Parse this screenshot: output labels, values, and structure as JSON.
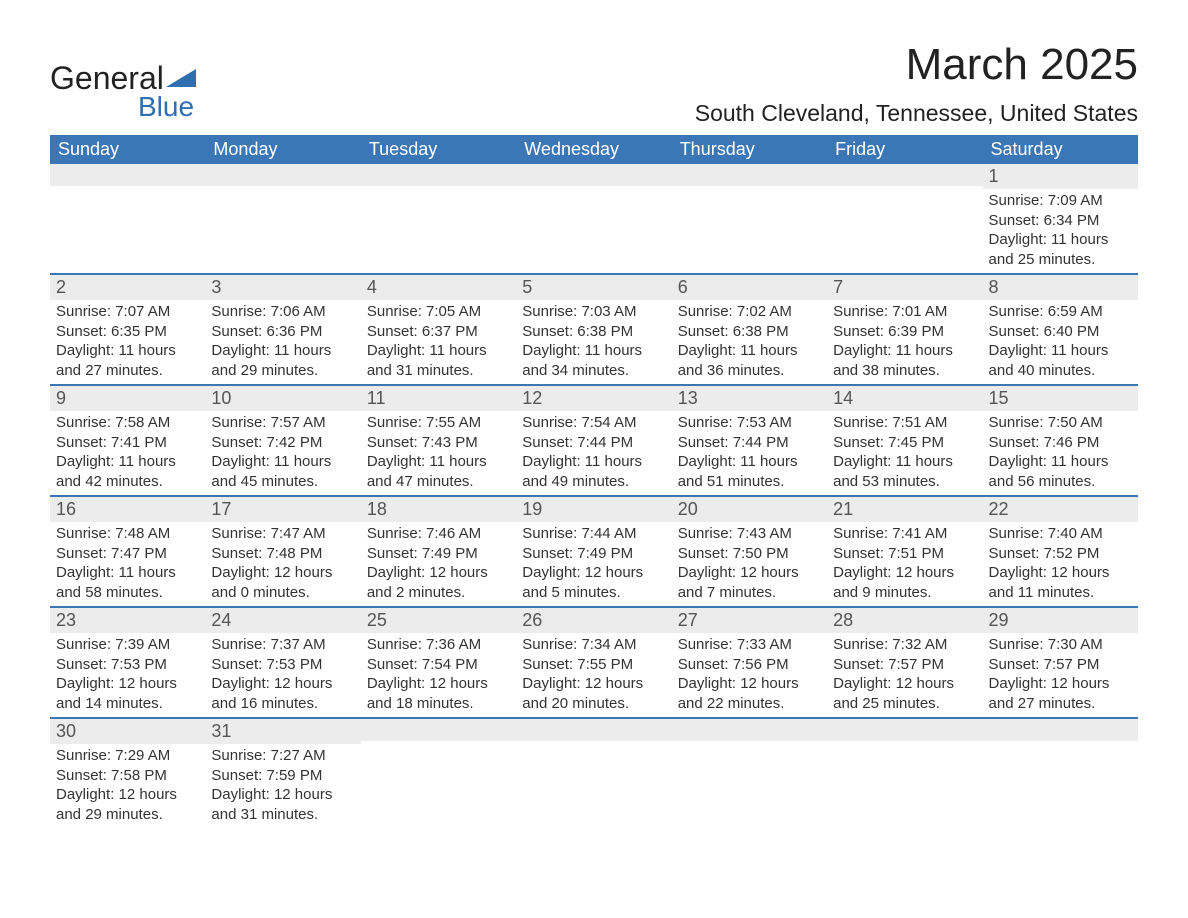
{
  "brand": {
    "name_top": "General",
    "name_bottom": "Blue",
    "shape_color": "#2f6fb0"
  },
  "title": "March 2025",
  "location": "South Cleveland, Tennessee, United States",
  "colors": {
    "header_bg": "#3b77b6",
    "header_text": "#ffffff",
    "daynum_bg": "#ececec",
    "border": "#3b77b6",
    "text": "#333333"
  },
  "weekdays": [
    "Sunday",
    "Monday",
    "Tuesday",
    "Wednesday",
    "Thursday",
    "Friday",
    "Saturday"
  ],
  "weeks": [
    [
      null,
      null,
      null,
      null,
      null,
      null,
      {
        "n": "1",
        "sunrise": "7:09 AM",
        "sunset": "6:34 PM",
        "dl1": "11 hours",
        "dl2": "and 25 minutes."
      }
    ],
    [
      {
        "n": "2",
        "sunrise": "7:07 AM",
        "sunset": "6:35 PM",
        "dl1": "11 hours",
        "dl2": "and 27 minutes."
      },
      {
        "n": "3",
        "sunrise": "7:06 AM",
        "sunset": "6:36 PM",
        "dl1": "11 hours",
        "dl2": "and 29 minutes."
      },
      {
        "n": "4",
        "sunrise": "7:05 AM",
        "sunset": "6:37 PM",
        "dl1": "11 hours",
        "dl2": "and 31 minutes."
      },
      {
        "n": "5",
        "sunrise": "7:03 AM",
        "sunset": "6:38 PM",
        "dl1": "11 hours",
        "dl2": "and 34 minutes."
      },
      {
        "n": "6",
        "sunrise": "7:02 AM",
        "sunset": "6:38 PM",
        "dl1": "11 hours",
        "dl2": "and 36 minutes."
      },
      {
        "n": "7",
        "sunrise": "7:01 AM",
        "sunset": "6:39 PM",
        "dl1": "11 hours",
        "dl2": "and 38 minutes."
      },
      {
        "n": "8",
        "sunrise": "6:59 AM",
        "sunset": "6:40 PM",
        "dl1": "11 hours",
        "dl2": "and 40 minutes."
      }
    ],
    [
      {
        "n": "9",
        "sunrise": "7:58 AM",
        "sunset": "7:41 PM",
        "dl1": "11 hours",
        "dl2": "and 42 minutes."
      },
      {
        "n": "10",
        "sunrise": "7:57 AM",
        "sunset": "7:42 PM",
        "dl1": "11 hours",
        "dl2": "and 45 minutes."
      },
      {
        "n": "11",
        "sunrise": "7:55 AM",
        "sunset": "7:43 PM",
        "dl1": "11 hours",
        "dl2": "and 47 minutes."
      },
      {
        "n": "12",
        "sunrise": "7:54 AM",
        "sunset": "7:44 PM",
        "dl1": "11 hours",
        "dl2": "and 49 minutes."
      },
      {
        "n": "13",
        "sunrise": "7:53 AM",
        "sunset": "7:44 PM",
        "dl1": "11 hours",
        "dl2": "and 51 minutes."
      },
      {
        "n": "14",
        "sunrise": "7:51 AM",
        "sunset": "7:45 PM",
        "dl1": "11 hours",
        "dl2": "and 53 minutes."
      },
      {
        "n": "15",
        "sunrise": "7:50 AM",
        "sunset": "7:46 PM",
        "dl1": "11 hours",
        "dl2": "and 56 minutes."
      }
    ],
    [
      {
        "n": "16",
        "sunrise": "7:48 AM",
        "sunset": "7:47 PM",
        "dl1": "11 hours",
        "dl2": "and 58 minutes."
      },
      {
        "n": "17",
        "sunrise": "7:47 AM",
        "sunset": "7:48 PM",
        "dl1": "12 hours",
        "dl2": "and 0 minutes."
      },
      {
        "n": "18",
        "sunrise": "7:46 AM",
        "sunset": "7:49 PM",
        "dl1": "12 hours",
        "dl2": "and 2 minutes."
      },
      {
        "n": "19",
        "sunrise": "7:44 AM",
        "sunset": "7:49 PM",
        "dl1": "12 hours",
        "dl2": "and 5 minutes."
      },
      {
        "n": "20",
        "sunrise": "7:43 AM",
        "sunset": "7:50 PM",
        "dl1": "12 hours",
        "dl2": "and 7 minutes."
      },
      {
        "n": "21",
        "sunrise": "7:41 AM",
        "sunset": "7:51 PM",
        "dl1": "12 hours",
        "dl2": "and 9 minutes."
      },
      {
        "n": "22",
        "sunrise": "7:40 AM",
        "sunset": "7:52 PM",
        "dl1": "12 hours",
        "dl2": "and 11 minutes."
      }
    ],
    [
      {
        "n": "23",
        "sunrise": "7:39 AM",
        "sunset": "7:53 PM",
        "dl1": "12 hours",
        "dl2": "and 14 minutes."
      },
      {
        "n": "24",
        "sunrise": "7:37 AM",
        "sunset": "7:53 PM",
        "dl1": "12 hours",
        "dl2": "and 16 minutes."
      },
      {
        "n": "25",
        "sunrise": "7:36 AM",
        "sunset": "7:54 PM",
        "dl1": "12 hours",
        "dl2": "and 18 minutes."
      },
      {
        "n": "26",
        "sunrise": "7:34 AM",
        "sunset": "7:55 PM",
        "dl1": "12 hours",
        "dl2": "and 20 minutes."
      },
      {
        "n": "27",
        "sunrise": "7:33 AM",
        "sunset": "7:56 PM",
        "dl1": "12 hours",
        "dl2": "and 22 minutes."
      },
      {
        "n": "28",
        "sunrise": "7:32 AM",
        "sunset": "7:57 PM",
        "dl1": "12 hours",
        "dl2": "and 25 minutes."
      },
      {
        "n": "29",
        "sunrise": "7:30 AM",
        "sunset": "7:57 PM",
        "dl1": "12 hours",
        "dl2": "and 27 minutes."
      }
    ],
    [
      {
        "n": "30",
        "sunrise": "7:29 AM",
        "sunset": "7:58 PM",
        "dl1": "12 hours",
        "dl2": "and 29 minutes."
      },
      {
        "n": "31",
        "sunrise": "7:27 AM",
        "sunset": "7:59 PM",
        "dl1": "12 hours",
        "dl2": "and 31 minutes."
      },
      null,
      null,
      null,
      null,
      null
    ]
  ],
  "labels": {
    "sunrise": "Sunrise:",
    "sunset": "Sunset:",
    "daylight": "Daylight:"
  }
}
